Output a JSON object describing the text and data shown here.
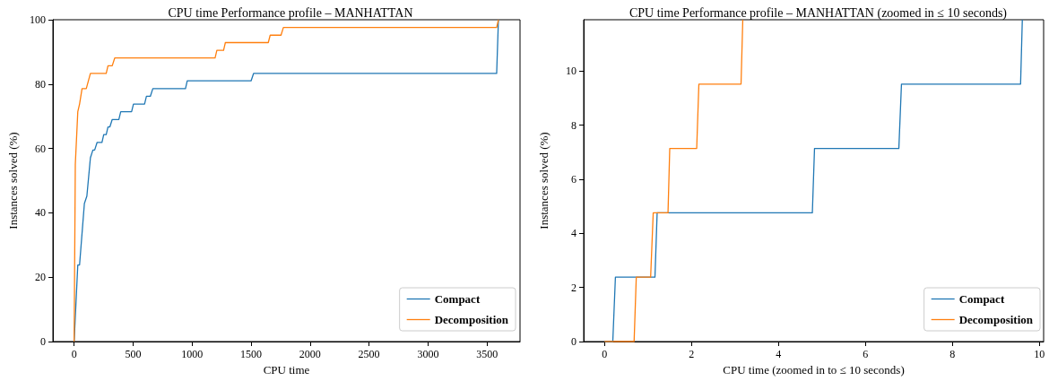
{
  "chart_data": [
    {
      "type": "line",
      "title": "CPU time Performance profile – MANHATTAN",
      "xlabel": "CPU time",
      "ylabel": "Instances solved (%)",
      "xlim": [
        -180,
        3780
      ],
      "xticks": [
        0,
        500,
        1000,
        1500,
        2000,
        2500,
        3000,
        3500
      ],
      "ylim": [
        0,
        100
      ],
      "yticks": [
        0,
        20,
        40,
        60,
        80,
        100
      ],
      "grid": false,
      "legend": "bottom right",
      "series": [
        {
          "name": "Compact",
          "color": "#1f77b4",
          "x": [
            0,
            31,
            46,
            87,
            108,
            138,
            159,
            174,
            195,
            236,
            251,
            272,
            287,
            303,
            323,
            379,
            395,
            487,
            503,
            597,
            613,
            646,
            667,
            944,
            959,
            1500,
            1521,
            3582,
            3597
          ],
          "values": [
            0,
            23.8,
            23.8,
            42.9,
            45.2,
            57.1,
            59.5,
            59.5,
            61.9,
            61.9,
            64.3,
            64.3,
            66.7,
            66.7,
            69.0,
            69.0,
            71.4,
            71.4,
            73.8,
            73.8,
            76.2,
            76.2,
            78.6,
            78.6,
            81.0,
            81.0,
            83.3,
            83.3,
            100
          ]
        },
        {
          "name": "Decomposition",
          "color": "#ff7f0e",
          "x": [
            0,
            10,
            31,
            46,
            67,
            103,
            138,
            272,
            287,
            323,
            344,
            1195,
            1210,
            1267,
            1282,
            1646,
            1662,
            1754,
            1774,
            3582,
            3597
          ],
          "values": [
            0,
            55.1,
            71.4,
            73.8,
            78.6,
            78.6,
            83.3,
            83.3,
            85.7,
            85.7,
            88.1,
            88.1,
            90.5,
            90.5,
            92.9,
            92.9,
            95.2,
            95.2,
            97.6,
            97.6,
            100
          ]
        }
      ]
    },
    {
      "type": "line",
      "title": "CPU time Performance profile – MANHATTAN (zoomed in ≤ 10 seconds)",
      "xlabel": "CPU time (zoomed in to ≤ 10 seconds)",
      "ylabel": "Instances solved (%)",
      "xlim": [
        -0.48,
        10.1
      ],
      "xticks": [
        0,
        2,
        4,
        6,
        8,
        10
      ],
      "ylim": [
        0,
        11.9
      ],
      "yticks": [
        0,
        2,
        4,
        6,
        8,
        10
      ],
      "grid": false,
      "legend": "bottom right",
      "series": [
        {
          "name": "Compact",
          "color": "#1f77b4",
          "x": [
            0,
            0.19,
            0.25,
            1.16,
            1.21,
            4.78,
            4.83,
            6.77,
            6.83,
            9.57,
            9.61
          ],
          "values": [
            0,
            0,
            2.38,
            2.38,
            4.76,
            4.76,
            7.14,
            7.14,
            9.52,
            9.52,
            11.9
          ]
        },
        {
          "name": "Decomposition",
          "color": "#ff7f0e",
          "x": [
            0,
            0.68,
            0.73,
            1.06,
            1.12,
            1.46,
            1.5,
            2.12,
            2.17,
            3.14,
            3.18
          ],
          "values": [
            0,
            0,
            2.38,
            2.38,
            4.76,
            4.76,
            7.14,
            7.14,
            9.52,
            9.52,
            11.9
          ]
        }
      ]
    }
  ]
}
